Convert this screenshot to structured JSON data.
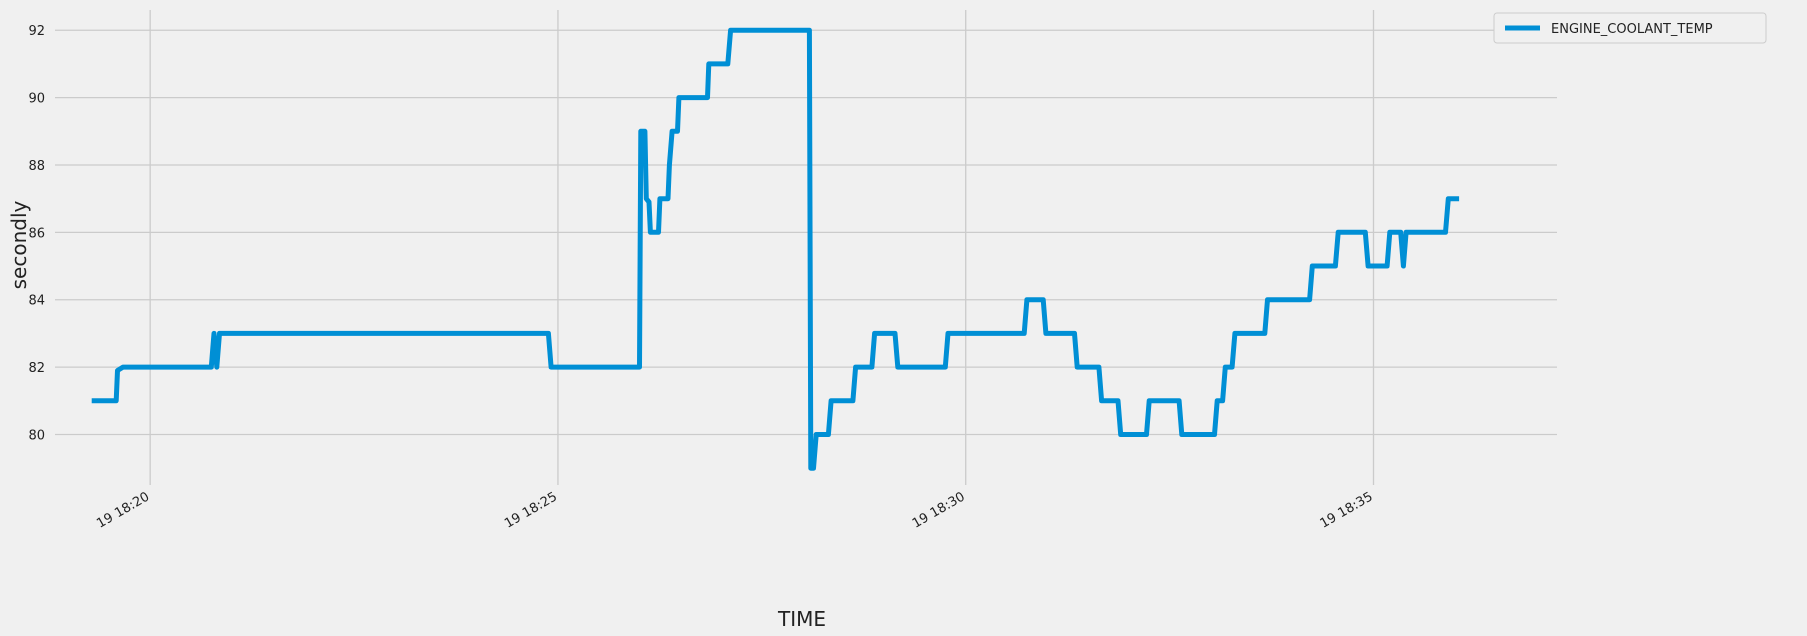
{
  "chart_data": {
    "type": "line",
    "xlabel": "TIME",
    "ylabel": "secondly",
    "x_range": [
      "18:18:50",
      "18:37:15"
    ],
    "ylim": [
      78.5,
      92.6
    ],
    "y_ticks": [
      80,
      82,
      84,
      86,
      88,
      90,
      92
    ],
    "x_ticks": [
      {
        "time": "18:20:00",
        "label": "19 18:20"
      },
      {
        "time": "18:25:00",
        "label": "19 18:25"
      },
      {
        "time": "18:30:00",
        "label": "19 18:30"
      },
      {
        "time": "18:35:00",
        "label": "19 18:35"
      }
    ],
    "grid": true,
    "legend": {
      "position": "top-right"
    },
    "colors": {
      "series": "#008fd5",
      "background": "#f0f0f0",
      "grid": "#cbcbcb"
    },
    "series": [
      {
        "name": "ENGINE_COOLANT_TEMP",
        "points": [
          [
            "18:19:17",
            81
          ],
          [
            "18:19:35",
            81
          ],
          [
            "18:19:36",
            81.9
          ],
          [
            "18:19:40",
            82
          ],
          [
            "18:20:45",
            82
          ],
          [
            "18:20:47",
            83
          ],
          [
            "18:20:49",
            82
          ],
          [
            "18:20:51",
            83
          ],
          [
            "18:24:53",
            83
          ],
          [
            "18:24:55",
            82
          ],
          [
            "18:26:00",
            82
          ],
          [
            "18:26:01",
            89
          ],
          [
            "18:26:04",
            89
          ],
          [
            "18:26:05",
            87
          ],
          [
            "18:26:07",
            86.9
          ],
          [
            "18:26:08",
            86
          ],
          [
            "18:26:14",
            86
          ],
          [
            "18:26:15",
            87
          ],
          [
            "18:26:21",
            87
          ],
          [
            "18:26:22",
            88
          ],
          [
            "18:26:24",
            89
          ],
          [
            "18:26:28",
            89
          ],
          [
            "18:26:29",
            90
          ],
          [
            "18:26:50",
            90
          ],
          [
            "18:26:51",
            91
          ],
          [
            "18:27:05",
            91
          ],
          [
            "18:27:07",
            92
          ],
          [
            "18:28:05",
            92
          ],
          [
            "18:28:06",
            79
          ],
          [
            "18:28:08",
            79
          ],
          [
            "18:28:10",
            80
          ],
          [
            "18:28:19",
            80
          ],
          [
            "18:28:21",
            81
          ],
          [
            "18:28:37",
            81
          ],
          [
            "18:28:39",
            82
          ],
          [
            "18:28:51",
            82
          ],
          [
            "18:28:53",
            83
          ],
          [
            "18:29:08",
            83
          ],
          [
            "18:29:10",
            82
          ],
          [
            "18:29:45",
            82
          ],
          [
            "18:29:47",
            83
          ],
          [
            "18:30:43",
            83
          ],
          [
            "18:30:45",
            84
          ],
          [
            "18:30:57",
            84
          ],
          [
            "18:30:59",
            83
          ],
          [
            "18:31:20",
            83
          ],
          [
            "18:31:22",
            82
          ],
          [
            "18:31:38",
            82
          ],
          [
            "18:31:40",
            81
          ],
          [
            "18:31:52",
            81
          ],
          [
            "18:31:54",
            80
          ],
          [
            "18:32:13",
            80
          ],
          [
            "18:32:15",
            81
          ],
          [
            "18:32:37",
            81
          ],
          [
            "18:32:39",
            80
          ],
          [
            "18:33:03",
            80
          ],
          [
            "18:33:05",
            81
          ],
          [
            "18:33:09",
            81
          ],
          [
            "18:33:11",
            82
          ],
          [
            "18:33:16",
            82
          ],
          [
            "18:33:18",
            83
          ],
          [
            "18:33:40",
            83
          ],
          [
            "18:33:42",
            84
          ],
          [
            "18:34:13",
            84
          ],
          [
            "18:34:15",
            85
          ],
          [
            "18:34:32",
            85
          ],
          [
            "18:34:34",
            86
          ],
          [
            "18:34:54",
            86
          ],
          [
            "18:34:56",
            85
          ],
          [
            "18:35:10",
            85
          ],
          [
            "18:35:12",
            86
          ],
          [
            "18:35:20",
            86
          ],
          [
            "18:35:22",
            85
          ],
          [
            "18:35:24",
            86
          ],
          [
            "18:35:53",
            86
          ],
          [
            "18:35:55",
            87
          ],
          [
            "18:36:03",
            87
          ]
        ]
      }
    ]
  }
}
